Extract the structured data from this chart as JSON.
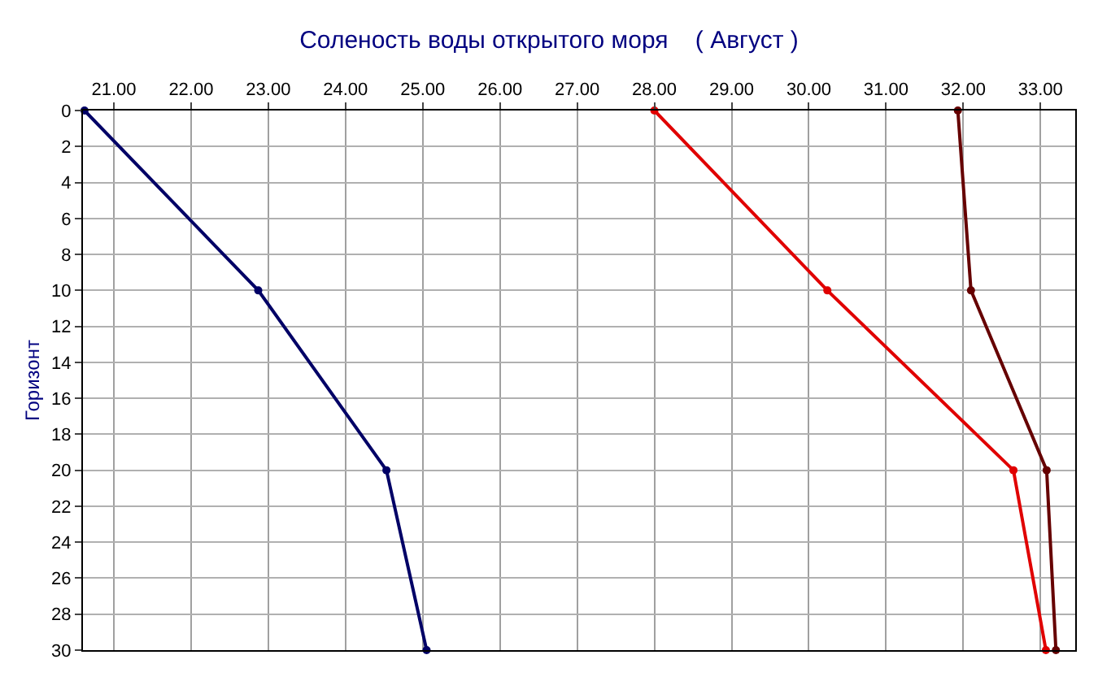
{
  "chart_data": {
    "type": "line",
    "title": "Соленость воды открытого моря    ( Август )",
    "ylabel": "Горизонт",
    "series": [
      {
        "color": "#000066",
        "x": [
          20.62,
          22.87,
          24.53,
          25.05
        ],
        "values": [
          0,
          10,
          20,
          30
        ]
      },
      {
        "color": "#e00000",
        "x": [
          28.0,
          30.24,
          32.65,
          33.07
        ],
        "values": [
          0,
          10,
          20,
          30
        ]
      },
      {
        "color": "#660000",
        "x": [
          31.93,
          32.1,
          33.08,
          33.2
        ],
        "values": [
          0,
          10,
          20,
          30
        ]
      }
    ],
    "xlim": [
      20.6,
      33.45
    ],
    "xticks": [
      {
        "value": 21,
        "label": "21.00"
      },
      {
        "value": 22,
        "label": "22.00"
      },
      {
        "value": 23,
        "label": "23.00"
      },
      {
        "value": 24,
        "label": "24.00"
      },
      {
        "value": 25,
        "label": "25.00"
      },
      {
        "value": 26,
        "label": "26.00"
      },
      {
        "value": 27,
        "label": "27.00"
      },
      {
        "value": 28,
        "label": "28.00"
      },
      {
        "value": 29,
        "label": "29.00"
      },
      {
        "value": 30,
        "label": "30.00"
      },
      {
        "value": 31,
        "label": "31.00"
      },
      {
        "value": 32,
        "label": "32.00"
      },
      {
        "value": 33,
        "label": "33.00"
      }
    ],
    "ylim": [
      30,
      0
    ],
    "yticks": [
      0,
      2,
      4,
      6,
      8,
      10,
      12,
      14,
      16,
      18,
      20,
      22,
      24,
      26,
      28,
      30
    ],
    "grid": true,
    "marker": "circle",
    "line_style": "solid"
  }
}
